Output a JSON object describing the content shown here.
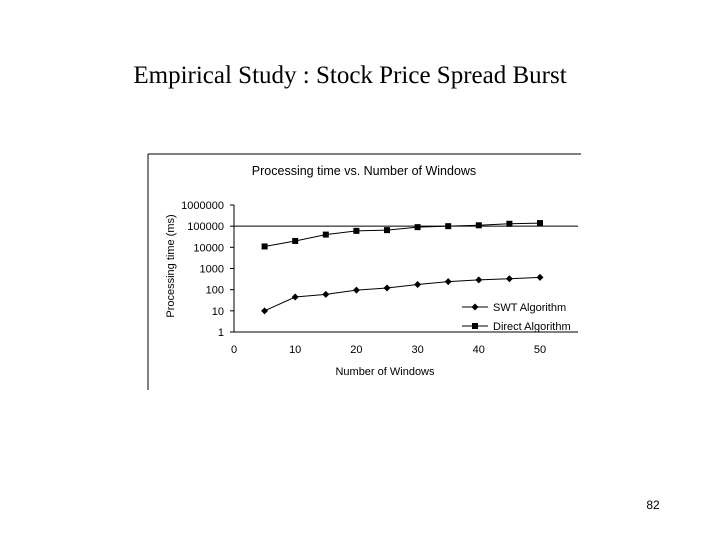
{
  "slide": {
    "title": "Empirical Study : Stock Price Spread Burst",
    "page_number": "82"
  },
  "chart_data": {
    "type": "line",
    "title": "Processing time vs. Number of Windows",
    "xlabel": "Number of Windows",
    "ylabel": "Processing time (ms)",
    "x_scale": "linear",
    "y_scale": "log",
    "xlim": [
      0,
      50
    ],
    "ylim": [
      1,
      1000000
    ],
    "x_ticks": [
      "0",
      "10",
      "20",
      "30",
      "40",
      "50"
    ],
    "y_ticks": [
      "1000000",
      "100000",
      "10000",
      "1000",
      "100",
      "10",
      "1"
    ],
    "grid": "horizontal line at 100000",
    "legend_position": "bottom-right",
    "series": [
      {
        "name": "SWT Algorithm",
        "marker": "diamond",
        "x": [
          5,
          10,
          15,
          20,
          25,
          30,
          35,
          40,
          45,
          50
        ],
        "values": [
          10,
          45,
          60,
          95,
          120,
          175,
          240,
          290,
          330,
          380
        ]
      },
      {
        "name": "Direct Algorithm",
        "marker": "square",
        "x": [
          5,
          10,
          15,
          20,
          25,
          30,
          35,
          40,
          45,
          50
        ],
        "values": [
          11000,
          20000,
          40000,
          60000,
          65000,
          90000,
          100000,
          110000,
          130000,
          140000
        ]
      }
    ]
  }
}
